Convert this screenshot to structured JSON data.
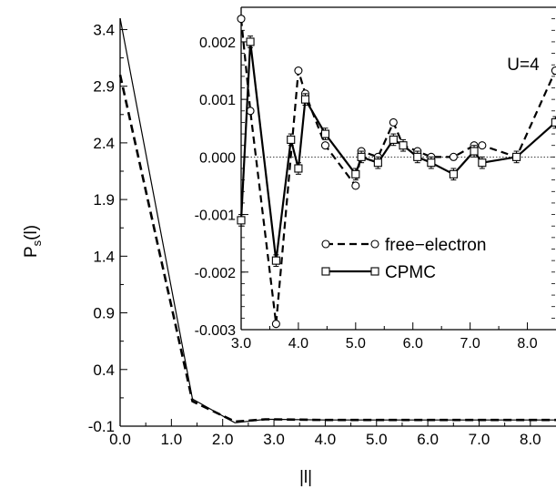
{
  "main_chart": {
    "type": "line",
    "xlabel": "|l|",
    "ylabel_main": "P",
    "ylabel_sub": "s",
    "ylabel_suffix": "(l)",
    "xlim": [
      0.0,
      8.5
    ],
    "ylim": [
      -0.1,
      3.5
    ],
    "xticks": [
      {
        "v": 0.0,
        "label": "0.0"
      },
      {
        "v": 1.0,
        "label": "1.0"
      },
      {
        "v": 2.0,
        "label": "2.0"
      },
      {
        "v": 3.0,
        "label": "3.0"
      },
      {
        "v": 4.0,
        "label": "4.0"
      },
      {
        "v": 5.0,
        "label": "5.0"
      },
      {
        "v": 6.0,
        "label": "6.0"
      },
      {
        "v": 7.0,
        "label": "7.0"
      },
      {
        "v": 8.0,
        "label": "8.0"
      }
    ],
    "yticks": [
      {
        "v": -0.1,
        "label": "-0.1"
      },
      {
        "v": 0.4,
        "label": "0.4"
      },
      {
        "v": 0.9,
        "label": "0.9"
      },
      {
        "v": 1.4,
        "label": "1.4"
      },
      {
        "v": 1.9,
        "label": "1.9"
      },
      {
        "v": 2.4,
        "label": "2.4"
      },
      {
        "v": 2.9,
        "label": "2.9"
      },
      {
        "v": 3.4,
        "label": "3.4"
      }
    ],
    "series": [
      {
        "style": "solid",
        "x": [
          0.0,
          1.41,
          2.24,
          2.83,
          3.0,
          4.0,
          5.0,
          6.0,
          7.0,
          8.0,
          8.5
        ],
        "y": [
          3.5,
          0.14,
          -0.07,
          -0.04,
          -0.04,
          -0.045,
          -0.045,
          -0.045,
          -0.045,
          -0.045,
          -0.045
        ]
      },
      {
        "style": "dashed",
        "x": [
          0.0,
          1.41,
          2.24,
          2.83,
          3.0,
          4.0,
          5.0,
          6.0,
          7.0,
          8.0,
          8.5
        ],
        "y": [
          3.0,
          0.12,
          -0.06,
          -0.04,
          -0.04,
          -0.045,
          -0.045,
          -0.045,
          -0.045,
          -0.045,
          -0.045
        ]
      }
    ]
  },
  "inset_chart": {
    "type": "line",
    "annotation": "U=4",
    "xlim": [
      3.0,
      8.5
    ],
    "ylim": [
      -0.003,
      0.0026
    ],
    "xticks": [
      {
        "v": 3.0,
        "label": "3.0"
      },
      {
        "v": 4.0,
        "label": "4.0"
      },
      {
        "v": 5.0,
        "label": "5.0"
      },
      {
        "v": 6.0,
        "label": "6.0"
      },
      {
        "v": 7.0,
        "label": "7.0"
      },
      {
        "v": 8.0,
        "label": "8.0"
      }
    ],
    "yticks": [
      {
        "v": -0.003,
        "label": "-0.003"
      },
      {
        "v": -0.002,
        "label": "-0.002"
      },
      {
        "v": -0.001,
        "label": "-0.001"
      },
      {
        "v": 0.0,
        "label": "0.000"
      },
      {
        "v": 0.001,
        "label": "0.001"
      },
      {
        "v": 0.002,
        "label": "0.002"
      }
    ],
    "zero_line": true,
    "series": [
      {
        "name": "free−electron",
        "marker": "circle",
        "style": "dashed",
        "x": [
          3.0,
          3.16,
          3.61,
          4.0,
          4.12,
          4.47,
          5.0,
          5.1,
          5.39,
          5.66,
          5.83,
          6.08,
          6.32,
          6.71,
          7.07,
          7.21,
          7.81,
          8.49
        ],
        "y": [
          0.0024,
          0.0008,
          -0.0029,
          0.0015,
          0.0011,
          0.0002,
          -0.0005,
          0.0001,
          0.0,
          0.0006,
          0.0002,
          0.0001,
          0.0,
          0.0,
          0.0002,
          0.0002,
          0.0,
          0.0015
        ]
      },
      {
        "name": "CPMC",
        "marker": "square",
        "style": "solid",
        "x": [
          3.0,
          3.16,
          3.61,
          3.87,
          4.0,
          4.12,
          4.47,
          5.0,
          5.1,
          5.39,
          5.66,
          5.83,
          6.08,
          6.32,
          6.71,
          7.07,
          7.21,
          7.81,
          8.49
        ],
        "y": [
          -0.0011,
          0.002,
          -0.0018,
          0.0003,
          -0.0002,
          0.001,
          0.0004,
          -0.0003,
          0.0,
          -0.0001,
          0.0003,
          0.0002,
          0.0,
          -0.0001,
          -0.0003,
          0.0001,
          -0.0001,
          0.0,
          0.0006
        ],
        "err": 0.0001
      }
    ],
    "legend": [
      {
        "label": "free−electron",
        "marker": "circle",
        "style": "dashed"
      },
      {
        "label": "CPMC",
        "marker": "square",
        "style": "solid"
      }
    ]
  }
}
